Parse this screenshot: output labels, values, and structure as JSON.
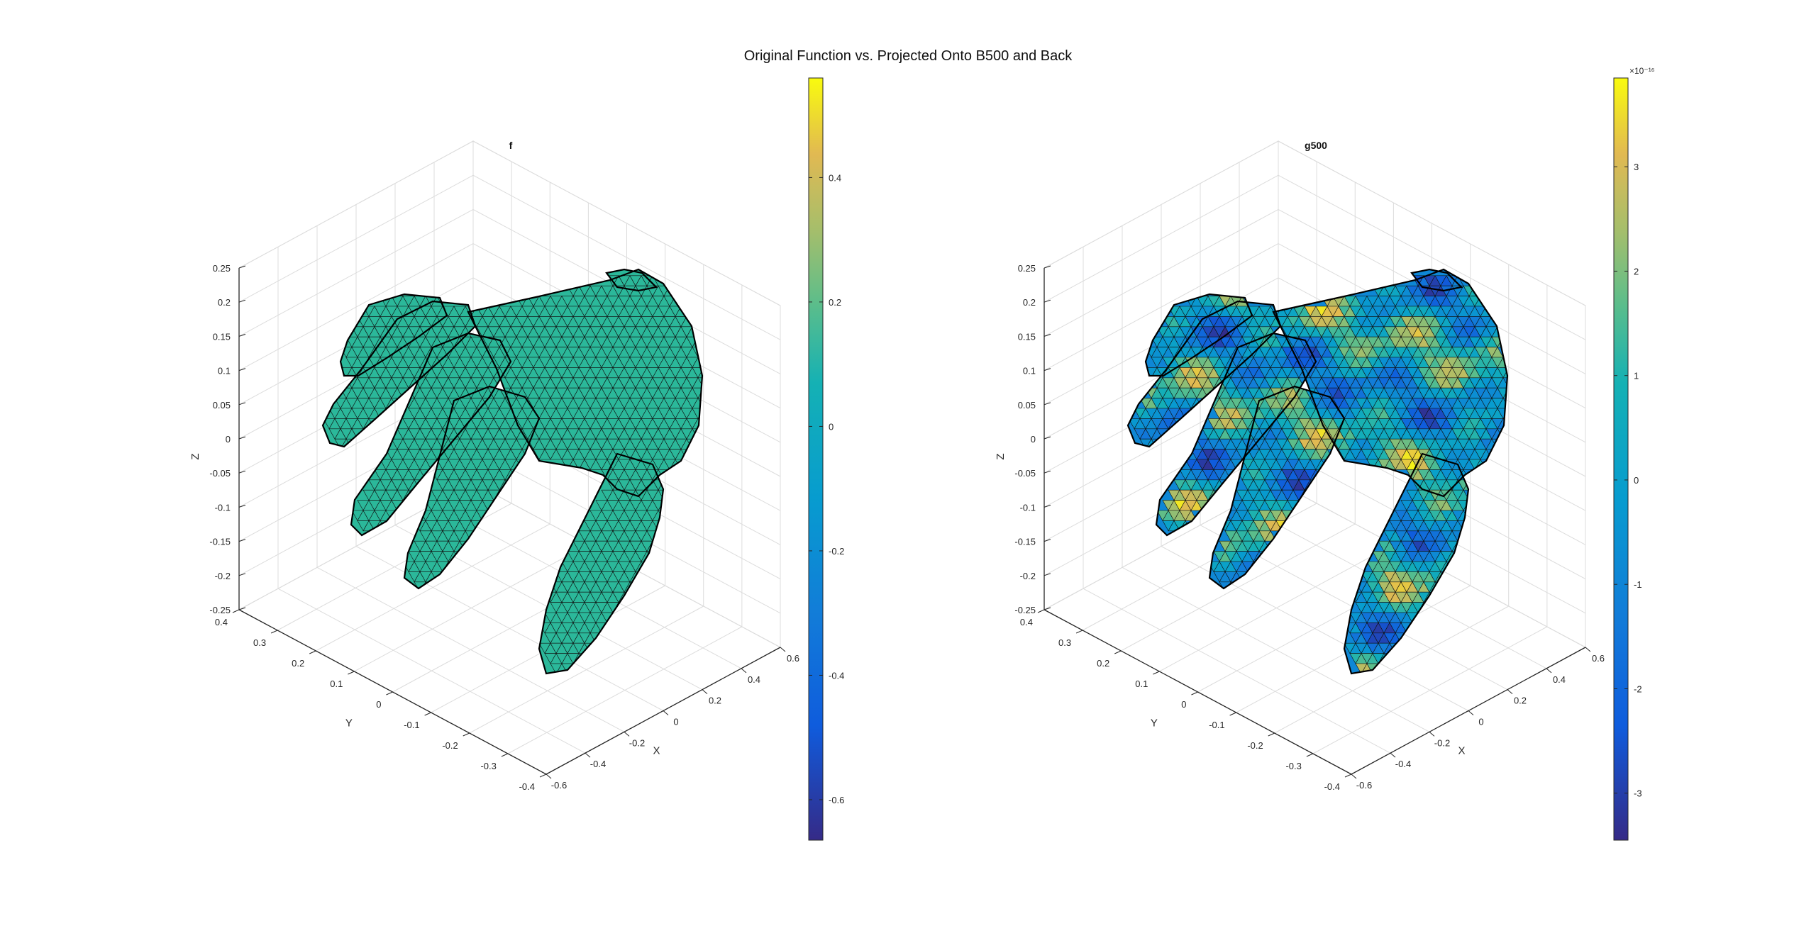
{
  "figure": {
    "title": "Original Function vs. Projected Onto B500 and Back"
  },
  "chart_data": [
    {
      "type": "surface",
      "title": "f",
      "xlabel": "X",
      "ylabel": "Y",
      "zlabel": "Z",
      "x_ticks": [
        "-0.6",
        "-0.4",
        "-0.2",
        "0",
        "0.2",
        "0.4",
        "0.6"
      ],
      "y_ticks": [
        "-0.4",
        "-0.3",
        "-0.2",
        "-0.1",
        "0",
        "0.1",
        "0.2",
        "0.3",
        "0.4"
      ],
      "z_ticks": [
        "-0.25",
        "-0.2",
        "-0.15",
        "-0.1",
        "-0.05",
        "0",
        "0.05",
        "0.1",
        "0.15",
        "0.2",
        "0.25"
      ],
      "xlim": [
        -0.6,
        0.6
      ],
      "ylim": [
        -0.4,
        0.4
      ],
      "zlim": [
        -0.25,
        0.25
      ],
      "grid": true,
      "colormap": "parula",
      "surface_value_constant": 0,
      "colorbar": {
        "ticks": [
          "0.4",
          "0.2",
          "0",
          "-0.2",
          "-0.4",
          "-0.6"
        ],
        "tick_values": [
          0.4,
          0.2,
          0,
          -0.2,
          -0.4,
          -0.6
        ],
        "range": [
          -0.665,
          0.56
        ],
        "exponent_label": ""
      }
    },
    {
      "type": "surface",
      "title": "g500",
      "xlabel": "X",
      "ylabel": "Y",
      "zlabel": "Z",
      "x_ticks": [
        "-0.6",
        "-0.4",
        "-0.2",
        "0",
        "0.2",
        "0.4",
        "0.6"
      ],
      "y_ticks": [
        "-0.4",
        "-0.3",
        "-0.2",
        "-0.1",
        "0",
        "0.1",
        "0.2",
        "0.3",
        "0.4"
      ],
      "z_ticks": [
        "-0.25",
        "-0.2",
        "-0.15",
        "-0.1",
        "-0.05",
        "0",
        "0.05",
        "0.1",
        "0.15",
        "0.2",
        "0.25"
      ],
      "xlim": [
        -0.6,
        0.6
      ],
      "ylim": [
        -0.4,
        0.4
      ],
      "zlim": [
        -0.25,
        0.25
      ],
      "grid": true,
      "colormap": "parula",
      "colorbar": {
        "ticks": [
          "3",
          "2",
          "1",
          "0",
          "-1",
          "-2",
          "-3"
        ],
        "tick_values": [
          3,
          2,
          1,
          0,
          -1,
          -2,
          -3
        ],
        "range": [
          -3.45,
          3.85
        ],
        "exponent_label": "×10⁻¹⁶"
      }
    }
  ],
  "colors": {
    "mesh_edge": "#101010",
    "constant_fill": "#2bb89a",
    "axis": "#262626",
    "grid": "#dcdcdc"
  }
}
